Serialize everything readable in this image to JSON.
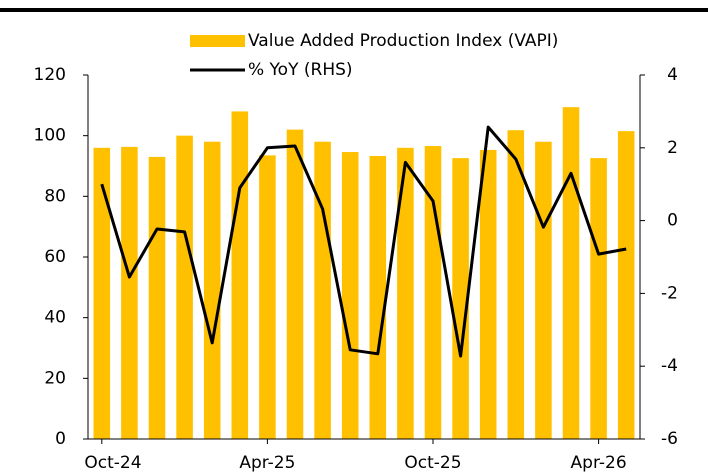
{
  "chart_data": {
    "type": "bar",
    "categories": [
      "Oct-24",
      null,
      null,
      null,
      null,
      null,
      "Apr-25",
      null,
      null,
      null,
      null,
      null,
      "Oct-25",
      null,
      null,
      null,
      null,
      null,
      "Apr-26",
      null
    ],
    "series": [
      {
        "name": "Value Added Production Index (VAPI)",
        "type": "bar",
        "color": "#ffc000",
        "values": [
          96,
          96.3,
          93,
          100,
          98,
          108,
          93.5,
          102,
          98,
          94.6,
          93.3,
          96,
          96.6,
          92.6,
          95.3,
          101.8,
          98,
          109.4,
          92.6,
          101.5
        ]
      },
      {
        "name": "% YoY (RHS)",
        "type": "line",
        "axis": "y2",
        "color": "#000000",
        "values": [
          1.0,
          -1.55,
          -0.23,
          -0.31,
          -3.36,
          0.9,
          2.0,
          2.05,
          0.32,
          -3.55,
          -3.66,
          1.6,
          0.54,
          -3.72,
          2.57,
          1.69,
          -0.18,
          1.3,
          -0.92,
          -0.78
        ]
      }
    ],
    "ylim": [
      0,
      120
    ],
    "yticks": [
      0,
      20,
      40,
      60,
      80,
      100,
      120
    ],
    "y2lim": [
      -6,
      4
    ],
    "y2ticks": [
      -6,
      -4,
      -2,
      0,
      2,
      4
    ],
    "legend": "top"
  }
}
